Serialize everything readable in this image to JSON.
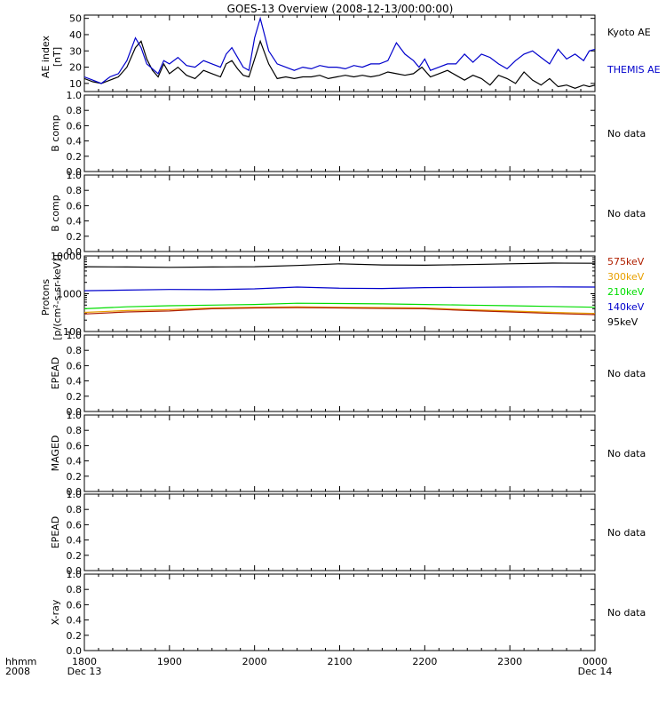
{
  "title": "GOES-13 Overview (2008-12-13/00:00:00)",
  "colors": {
    "axis": "#000000",
    "kyoto": "#000000",
    "themis": "#0000cc",
    "p575": "#b02000",
    "p300": "#e8a000",
    "p210": "#00dd00",
    "p140": "#0000cc",
    "p95": "#000000"
  },
  "time_axis": {
    "corner_top": "hhmm",
    "corner_bottom": "2008",
    "ticks": [
      {
        "t": 0,
        "top": "1800",
        "bottom": "Dec 13"
      },
      {
        "t": 60,
        "top": "1900",
        "bottom": ""
      },
      {
        "t": 120,
        "top": "2000",
        "bottom": ""
      },
      {
        "t": 180,
        "top": "2100",
        "bottom": ""
      },
      {
        "t": 240,
        "top": "2200",
        "bottom": ""
      },
      {
        "t": 300,
        "top": "2300",
        "bottom": ""
      },
      {
        "t": 360,
        "top": "0000",
        "bottom": "Dec 14"
      }
    ]
  },
  "chart_data": [
    {
      "id": "ae",
      "type": "line",
      "ylabel": "AE index",
      "ylabel2": "[nT]",
      "yscale": "linear",
      "ylim": [
        5,
        52
      ],
      "yticks": [
        10,
        20,
        30,
        40,
        50
      ],
      "tick_labels": [
        "10",
        "20",
        "30",
        "40",
        "50"
      ],
      "legend": [
        "Kyoto AE",
        "THEMIS AE"
      ],
      "series": [
        {
          "name": "Kyoto AE",
          "color_key": "kyoto",
          "x": [
            0,
            6,
            12,
            18,
            24,
            30,
            36,
            40,
            44,
            48,
            52,
            56,
            60,
            66,
            72,
            78,
            84,
            90,
            96,
            100,
            104,
            108,
            112,
            116,
            120,
            124,
            130,
            136,
            142,
            148,
            154,
            160,
            166,
            172,
            178,
            184,
            190,
            196,
            202,
            208,
            214,
            220,
            226,
            232,
            238,
            244,
            250,
            256,
            262,
            268,
            274,
            280,
            286,
            292,
            298,
            304,
            310,
            316,
            322,
            328,
            334,
            340,
            346,
            352,
            356,
            360
          ],
          "values": [
            13,
            11,
            10,
            12,
            14,
            20,
            32,
            36,
            25,
            18,
            14,
            22,
            16,
            20,
            15,
            13,
            18,
            16,
            14,
            22,
            24,
            19,
            15,
            14,
            25,
            36,
            22,
            13,
            14,
            13,
            14,
            14,
            15,
            13,
            14,
            15,
            14,
            15,
            14,
            15,
            17,
            16,
            15,
            16,
            20,
            14,
            16,
            18,
            15,
            12,
            15,
            13,
            9,
            15,
            13,
            10,
            17,
            12,
            9,
            13,
            8,
            9,
            7,
            9,
            8,
            9
          ]
        },
        {
          "name": "THEMIS AE",
          "color_key": "themis",
          "x": [
            0,
            6,
            12,
            18,
            24,
            30,
            36,
            40,
            44,
            48,
            52,
            56,
            60,
            66,
            72,
            78,
            84,
            90,
            96,
            100,
            104,
            108,
            112,
            116,
            120,
            124,
            130,
            136,
            142,
            148,
            154,
            160,
            166,
            172,
            178,
            184,
            190,
            196,
            202,
            208,
            214,
            220,
            226,
            232,
            236,
            240,
            244,
            250,
            256,
            262,
            268,
            274,
            280,
            286,
            292,
            298,
            304,
            310,
            316,
            322,
            328,
            334,
            340,
            346,
            352,
            356,
            360
          ],
          "values": [
            14,
            12,
            10,
            14,
            16,
            24,
            38,
            32,
            22,
            19,
            16,
            24,
            22,
            26,
            21,
            20,
            24,
            22,
            20,
            28,
            32,
            26,
            20,
            18,
            38,
            50,
            30,
            22,
            20,
            18,
            20,
            19,
            21,
            20,
            20,
            19,
            21,
            20,
            22,
            22,
            24,
            35,
            28,
            24,
            20,
            25,
            18,
            20,
            22,
            22,
            28,
            23,
            28,
            26,
            22,
            19,
            24,
            28,
            30,
            26,
            22,
            31,
            25,
            28,
            24,
            30,
            31
          ]
        }
      ]
    },
    {
      "id": "b1",
      "type": "line",
      "ylabel": "B comp",
      "yscale": "linear",
      "ylim": [
        0,
        1
      ],
      "tick_labels": [
        "0.0",
        "0.2",
        "0.4",
        "0.6",
        "0.8",
        "1.0"
      ],
      "status": "No data"
    },
    {
      "id": "b2",
      "type": "line",
      "ylabel": "B comp",
      "yscale": "linear",
      "ylim": [
        0,
        1
      ],
      "tick_labels": [
        "0.0",
        "0.2",
        "0.4",
        "0.6",
        "0.8",
        "1.0"
      ],
      "status": "No data"
    },
    {
      "id": "protons",
      "type": "line",
      "ylabel": "Protons",
      "ylabel2": "[p/(cm²-s-sr-keV)]",
      "yscale": "log",
      "ylim": [
        100,
        10000
      ],
      "yticks": [
        100,
        1000,
        10000
      ],
      "tick_labels": [
        "100",
        "1000",
        "10000"
      ],
      "legend": [
        "575keV",
        "300keV",
        "210keV",
        "140keV",
        "95keV"
      ],
      "series": [
        {
          "name": "95keV",
          "color_key": "p95",
          "x": [
            0,
            30,
            60,
            90,
            120,
            150,
            180,
            210,
            240,
            270,
            300,
            330,
            360
          ],
          "values": [
            5200,
            5100,
            5000,
            5100,
            5200,
            5600,
            6200,
            5800,
            5700,
            5900,
            6200,
            6500,
            6400
          ]
        },
        {
          "name": "140keV",
          "color_key": "p140",
          "x": [
            0,
            30,
            60,
            90,
            120,
            150,
            180,
            210,
            240,
            270,
            300,
            330,
            360
          ],
          "values": [
            1200,
            1250,
            1300,
            1280,
            1350,
            1500,
            1400,
            1380,
            1450,
            1480,
            1500,
            1520,
            1500
          ]
        },
        {
          "name": "210keV",
          "color_key": "p210",
          "x": [
            0,
            30,
            60,
            90,
            120,
            150,
            180,
            210,
            240,
            270,
            300,
            330,
            360
          ],
          "values": [
            400,
            450,
            480,
            500,
            520,
            560,
            550,
            540,
            520,
            500,
            480,
            460,
            440
          ]
        },
        {
          "name": "300keV",
          "color_key": "p300",
          "x": [
            0,
            30,
            60,
            90,
            120,
            150,
            180,
            210,
            240,
            270,
            300,
            330,
            360
          ],
          "values": [
            320,
            360,
            380,
            420,
            440,
            450,
            440,
            430,
            420,
            380,
            350,
            320,
            300
          ]
        },
        {
          "name": "575keV",
          "color_key": "p575",
          "x": [
            0,
            30,
            60,
            90,
            120,
            150,
            180,
            210,
            240,
            270,
            300,
            330,
            360
          ],
          "values": [
            290,
            330,
            350,
            400,
            420,
            430,
            420,
            410,
            400,
            360,
            330,
            300,
            280
          ]
        }
      ]
    },
    {
      "id": "epead1",
      "type": "line",
      "ylabel": "EPEAD",
      "yscale": "linear",
      "ylim": [
        0,
        1
      ],
      "tick_labels": [
        "0.0",
        "0.2",
        "0.4",
        "0.6",
        "0.8",
        "1.0"
      ],
      "status": "No data"
    },
    {
      "id": "maged",
      "type": "line",
      "ylabel": "MAGED",
      "yscale": "linear",
      "ylim": [
        0,
        1
      ],
      "tick_labels": [
        "0.0",
        "0.2",
        "0.4",
        "0.6",
        "0.8",
        "1.0"
      ],
      "status": "No data"
    },
    {
      "id": "epead2",
      "type": "line",
      "ylabel": "EPEAD",
      "yscale": "linear",
      "ylim": [
        0,
        1
      ],
      "tick_labels": [
        "0.0",
        "0.2",
        "0.4",
        "0.6",
        "0.8",
        "1.0"
      ],
      "status": "No data"
    },
    {
      "id": "xray",
      "type": "line",
      "ylabel": "X-ray",
      "yscale": "linear",
      "ylim": [
        0,
        1
      ],
      "tick_labels": [
        "0.0",
        "0.2",
        "0.4",
        "0.6",
        "0.8",
        "1.0"
      ],
      "status": "No data"
    }
  ]
}
